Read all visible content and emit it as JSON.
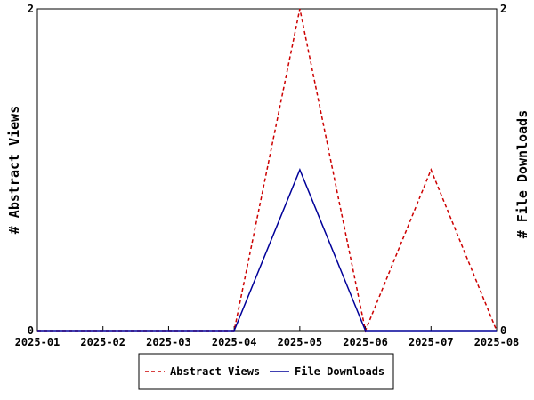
{
  "chart_data": {
    "type": "line",
    "x": [
      "2025-01",
      "2025-02",
      "2025-03",
      "2025-04",
      "2025-05",
      "2025-06",
      "2025-07",
      "2025-08"
    ],
    "series": [
      {
        "name": "Abstract Views",
        "values": [
          0,
          0,
          0,
          0,
          2,
          0,
          1,
          0
        ],
        "color": "#cc0000",
        "style": "dashed",
        "axis": "left"
      },
      {
        "name": "File Downloads",
        "values": [
          0,
          0,
          0,
          0,
          1,
          0,
          0,
          0
        ],
        "color": "#000099",
        "style": "solid",
        "axis": "right"
      }
    ],
    "ylabel_left": "# Abstract Views",
    "ylabel_right": "# File Downloads",
    "ylim_left": [
      0,
      2
    ],
    "ylim_right": [
      0,
      2
    ],
    "yticks_left": [
      "0",
      "2"
    ],
    "yticks_right": [
      "0",
      "2"
    ],
    "grid": false,
    "legend_position": "bottom"
  }
}
